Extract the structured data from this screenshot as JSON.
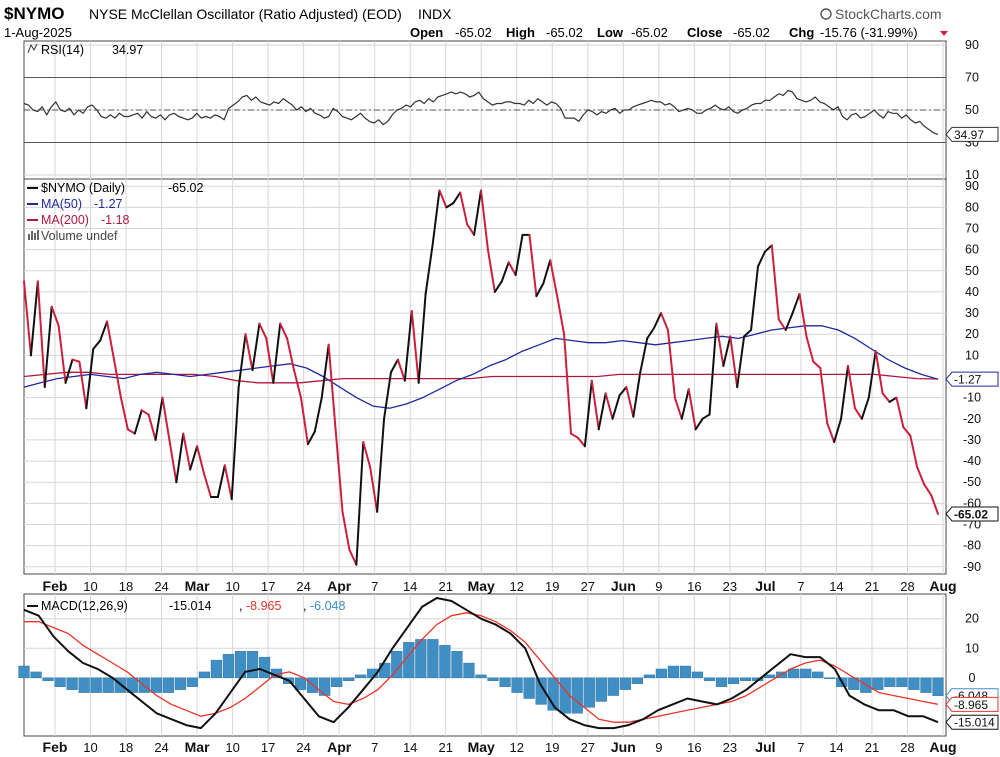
{
  "header": {
    "symbol": "$NYMO",
    "description": "NYSE McClellan Oscillator (Ratio Adjusted) (EOD)",
    "exchange": "INDX",
    "watermark": "StockCharts.com",
    "date": "1-Aug-2025",
    "open_label": "Open",
    "open_value": "-65.02",
    "high_label": "High",
    "high_value": "-65.02",
    "low_label": "Low",
    "low_value": "-65.02",
    "close_label": "Close",
    "close_value": "-65.02",
    "chg_label": "Chg",
    "chg_value": "-15.76 (-31.99%)"
  },
  "colors": {
    "price_up": "#111111",
    "price_down": "#cc1f3c",
    "ma50": "#1f2a9c",
    "ma200": "#b0173e",
    "macd_line": "#111111",
    "signal_line": "#e8342a",
    "histogram": "#3f8fc4",
    "grid": "#d6d6d6",
    "label_box": "#ffffff"
  },
  "chart_data": [
    {
      "type": "line",
      "panel": "rsi",
      "legend": [
        {
          "label": "RSI(14)",
          "value": "34.97"
        }
      ],
      "yticks": [
        90,
        70,
        50,
        30,
        10
      ],
      "ylim": [
        10,
        90
      ],
      "reference_lines": [
        70,
        50,
        30
      ],
      "last_value_tag": "34.97",
      "series": [
        {
          "name": "RSI(14)",
          "values": [
            54,
            53,
            50,
            49,
            52,
            47,
            52,
            55,
            50,
            49,
            51,
            47,
            50,
            48,
            52,
            53,
            50,
            46,
            45,
            47,
            45,
            48,
            46,
            46,
            47,
            48,
            45,
            49,
            46,
            45,
            47,
            44,
            47,
            48,
            46,
            45,
            44,
            45,
            48,
            45,
            46,
            45,
            47,
            46,
            44,
            51,
            53,
            55,
            58,
            59,
            56,
            58,
            55,
            54,
            53,
            55,
            54,
            57,
            55,
            53,
            50,
            52,
            49,
            51,
            48,
            47,
            45,
            46,
            51,
            49,
            46,
            45,
            44,
            46,
            48,
            45,
            43,
            42,
            44,
            41,
            43,
            47,
            50,
            51,
            53,
            52,
            55,
            56,
            54,
            57,
            55,
            58,
            59,
            60,
            61,
            60,
            61,
            60,
            58,
            59,
            61,
            57,
            55,
            53,
            54,
            54,
            55,
            55,
            54,
            54,
            53,
            56,
            54,
            57,
            55,
            53,
            55,
            54,
            51,
            45,
            45,
            45,
            43,
            47,
            50,
            49,
            47,
            49,
            48,
            50,
            51,
            48,
            50,
            50,
            52,
            53,
            54,
            55,
            56,
            55,
            55,
            53,
            54,
            52,
            49,
            50,
            51,
            50,
            48,
            48,
            50,
            51,
            53,
            51,
            50,
            52,
            49,
            48,
            50,
            51,
            53,
            54,
            54,
            56,
            56,
            58,
            60,
            59,
            62,
            61,
            57,
            56,
            55,
            56,
            58,
            55,
            54,
            52,
            50,
            52,
            46,
            44,
            47,
            48,
            45,
            46,
            48,
            50,
            47,
            45,
            49,
            48,
            48,
            45,
            47,
            44,
            42,
            43,
            40,
            38,
            36,
            34.97
          ]
        }
      ]
    },
    {
      "type": "line",
      "panel": "price",
      "legend": [
        {
          "label": "$NYMO (Daily)",
          "value": "-65.02"
        },
        {
          "label": "MA(50)",
          "value": "-1.27"
        },
        {
          "label": "MA(200)",
          "value": "-1.18"
        },
        {
          "label": "Volume undef",
          "value": ""
        }
      ],
      "yticks": [
        90,
        80,
        70,
        60,
        50,
        40,
        30,
        20,
        10,
        -10,
        -20,
        -30,
        -40,
        -50,
        -60,
        -70,
        -80,
        -90
      ],
      "ylim": [
        -92,
        92
      ],
      "last_value_tags": [
        "-1.27",
        "-65.02"
      ],
      "series": [
        {
          "name": "$NYMO (Daily)",
          "values": [
            45,
            10,
            45,
            -5,
            33,
            24,
            -3,
            8,
            7,
            -15,
            13,
            17,
            26,
            8,
            -10,
            -25,
            -27,
            -16,
            -18,
            -30,
            -10,
            -30,
            -50,
            -27,
            -44,
            -33,
            -46,
            -57,
            -57,
            -42,
            -58,
            -5,
            20,
            3,
            25,
            18,
            -3,
            25,
            18,
            3,
            -10,
            -32,
            -26,
            -10,
            15,
            -25,
            -64,
            -82,
            -89,
            -31,
            -43,
            -64,
            -20,
            2,
            8,
            -2,
            31,
            -3,
            39,
            62,
            88,
            80,
            82,
            87,
            72,
            67,
            88,
            60,
            40,
            45,
            54,
            48,
            67,
            67,
            38,
            44,
            55,
            38,
            20,
            -27,
            -29,
            -33,
            -2,
            -25,
            -8,
            -20,
            -9,
            -5,
            -19,
            2,
            18,
            23,
            30,
            22,
            -10,
            -20,
            -6,
            -25,
            -20,
            -18,
            25,
            5,
            19,
            -5,
            19,
            22,
            52,
            59,
            62,
            27,
            22,
            30,
            39,
            19,
            7,
            4,
            -22,
            -31,
            -20,
            5,
            -15,
            -20,
            -10,
            12,
            -8,
            -12,
            -10,
            -24,
            -28,
            -43,
            -51,
            -56,
            -65.02
          ]
        },
        {
          "name": "MA(50)",
          "values": [
            -5,
            -3,
            -1,
            0,
            1,
            0,
            -1,
            1,
            2,
            1,
            0,
            1,
            2,
            3,
            4,
            5,
            6,
            4,
            0,
            -5,
            -10,
            -14,
            -15,
            -13,
            -10,
            -6,
            -2,
            1,
            5,
            8,
            12,
            15,
            18,
            17,
            16,
            16,
            17,
            16,
            15,
            16,
            17,
            18,
            19,
            18,
            20,
            22,
            23,
            24,
            24,
            22,
            18,
            13,
            8,
            4,
            1,
            -1.27
          ]
        },
        {
          "name": "MA(200)",
          "values": [
            0,
            1,
            2,
            2,
            1,
            1,
            1,
            1,
            1,
            0,
            -2,
            -3,
            -3,
            -3,
            -2,
            -1,
            -1,
            -1,
            -1,
            -1,
            -1,
            -1,
            0,
            0,
            0,
            0,
            0,
            0,
            1,
            1,
            1,
            1,
            1,
            1,
            1,
            1,
            1,
            1,
            1,
            1,
            1,
            0,
            -1,
            -1.18
          ]
        }
      ]
    },
    {
      "type": "line",
      "panel": "macd",
      "legend": [
        {
          "label": "MACD(12,26,9)",
          "value": "-15.014"
        },
        {
          "label": "",
          "value": "-8.965"
        },
        {
          "label": "",
          "value": "-6.048"
        }
      ],
      "yticks": [
        20,
        10,
        0
      ],
      "ylim": [
        -19,
        27
      ],
      "last_value_tags": [
        "-6.048",
        "-8.965",
        "-15.014"
      ],
      "series": [
        {
          "name": "MACD",
          "values": [
            23,
            21,
            14,
            9,
            5,
            3,
            0,
            -4,
            -8,
            -12,
            -14,
            -16,
            -17,
            -12,
            -5,
            2,
            3,
            1,
            -1,
            -7,
            -13,
            -15,
            -10,
            -4,
            2,
            10,
            17,
            24,
            27,
            26,
            23,
            20,
            18,
            15,
            10,
            -2,
            -10,
            -14,
            -16,
            -17,
            -17,
            -16,
            -14,
            -11,
            -9,
            -7,
            -8,
            -9,
            -7,
            -4,
            0,
            4,
            8,
            7,
            7,
            3,
            -6,
            -9,
            -11,
            -11,
            -13,
            -13,
            -15.014
          ]
        },
        {
          "name": "Signal",
          "values": [
            19,
            19,
            17,
            15,
            11,
            8,
            5,
            2,
            -2,
            -6,
            -9,
            -11,
            -13,
            -12,
            -10,
            -7,
            -3,
            1,
            2,
            0,
            -4,
            -8,
            -9,
            -7,
            -4,
            1,
            7,
            13,
            18,
            21,
            22,
            21,
            19,
            16,
            12,
            6,
            0,
            -6,
            -10,
            -14,
            -15,
            -15,
            -14,
            -13,
            -12,
            -11,
            -10,
            -9,
            -8,
            -6,
            -3,
            0,
            3,
            5,
            6,
            4,
            1,
            -2,
            -5,
            -6,
            -7,
            -8,
            -8.965
          ]
        },
        {
          "name": "Histogram",
          "values": [
            4,
            2,
            -1,
            -3,
            -4,
            -5,
            -5,
            -5,
            -5,
            -5,
            -5,
            -5,
            -5,
            -4,
            -3,
            2,
            6,
            8,
            9,
            9,
            7,
            3,
            -2,
            -4,
            -5,
            -6,
            -3,
            -1,
            1,
            3,
            5,
            9,
            12,
            13,
            13,
            11,
            9,
            5,
            1,
            -1,
            -3,
            -5,
            -7,
            -9,
            -11,
            -12,
            -12,
            -10,
            -8,
            -6,
            -4,
            -2,
            1,
            3,
            4,
            4,
            2,
            -1,
            -3,
            -2,
            -1,
            -1,
            1,
            2,
            3,
            3,
            2,
            0,
            -3,
            -4,
            -5,
            -4,
            -3,
            -3,
            -4,
            -5,
            -6.048
          ]
        }
      ]
    }
  ],
  "x_axis": {
    "ticks": [
      {
        "label": "Feb",
        "bold": true
      },
      {
        "label": "10",
        "bold": false
      },
      {
        "label": "18",
        "bold": false
      },
      {
        "label": "24",
        "bold": false
      },
      {
        "label": "Mar",
        "bold": true
      },
      {
        "label": "10",
        "bold": false
      },
      {
        "label": "17",
        "bold": false
      },
      {
        "label": "24",
        "bold": false
      },
      {
        "label": "Apr",
        "bold": true
      },
      {
        "label": "7",
        "bold": false
      },
      {
        "label": "14",
        "bold": false
      },
      {
        "label": "21",
        "bold": false
      },
      {
        "label": "May",
        "bold": true
      },
      {
        "label": "12",
        "bold": false
      },
      {
        "label": "19",
        "bold": false
      },
      {
        "label": "27",
        "bold": false
      },
      {
        "label": "Jun",
        "bold": true
      },
      {
        "label": "9",
        "bold": false
      },
      {
        "label": "16",
        "bold": false
      },
      {
        "label": "23",
        "bold": false
      },
      {
        "label": "Jul",
        "bold": true
      },
      {
        "label": "7",
        "bold": false
      },
      {
        "label": "14",
        "bold": false
      },
      {
        "label": "21",
        "bold": false
      },
      {
        "label": "28",
        "bold": false
      },
      {
        "label": "Aug",
        "bold": true
      }
    ]
  }
}
